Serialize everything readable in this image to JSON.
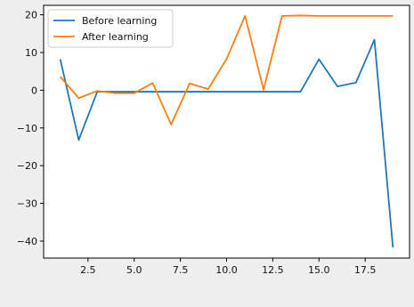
{
  "chart_data": {
    "type": "line",
    "title": "",
    "xlabel": "",
    "ylabel": "",
    "x": [
      1,
      2,
      3,
      4,
      5,
      6,
      7,
      8,
      9,
      10,
      11,
      12,
      13,
      14,
      15,
      16,
      17,
      18,
      19
    ],
    "series": [
      {
        "name": "Before learning",
        "color": "#1f77b4",
        "values": [
          8.2,
          -13.2,
          -0.4,
          -0.4,
          -0.4,
          -0.4,
          -0.4,
          -0.4,
          -0.4,
          -0.4,
          -0.4,
          -0.4,
          -0.4,
          -0.4,
          8.2,
          1.0,
          2.0,
          13.4,
          -41.7
        ]
      },
      {
        "name": "After learning",
        "color": "#ff7f0e",
        "values": [
          3.6,
          -2.1,
          -0.2,
          -0.8,
          -0.8,
          1.9,
          -9.1,
          1.8,
          0.3,
          8.3,
          19.7,
          0.1,
          19.7,
          19.8,
          19.7,
          19.7,
          19.7,
          19.7,
          19.7
        ]
      }
    ],
    "xlim": [
      0.1,
      19.9
    ],
    "ylim": [
      -44.5,
      22.5
    ],
    "xticks": [
      2.5,
      5.0,
      7.5,
      10.0,
      12.5,
      15.0,
      17.5
    ],
    "xtick_labels": [
      "2.5",
      "5.0",
      "7.5",
      "10.0",
      "12.5",
      "15.0",
      "17.5"
    ],
    "yticks": [
      20,
      10,
      0,
      -10,
      -20,
      -30,
      -40
    ],
    "ytick_labels": [
      "20",
      "10",
      "0",
      "−10",
      "−20",
      "−30",
      "−40"
    ],
    "legend_position": "top-left",
    "grid": false
  }
}
